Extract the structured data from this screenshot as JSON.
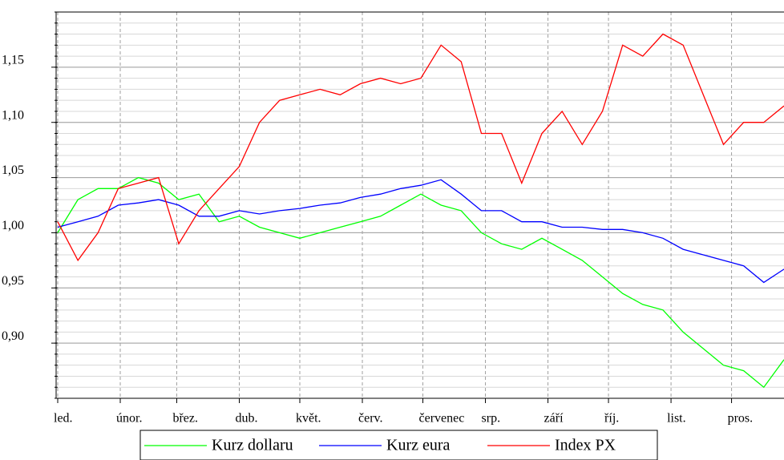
{
  "chart_data": {
    "type": "line",
    "x": [
      0,
      10,
      20,
      30,
      40,
      50,
      60,
      70,
      80,
      90,
      100,
      110,
      120,
      130,
      140,
      150,
      160,
      170,
      180,
      190,
      200,
      210,
      220,
      230,
      240,
      250,
      260,
      270,
      280,
      290,
      300,
      310,
      320,
      330,
      340,
      350,
      360
    ],
    "xlim": [
      0,
      360
    ],
    "xticks": [
      {
        "value": 0,
        "label": "led."
      },
      {
        "value": 31,
        "label": "únor."
      },
      {
        "value": 59,
        "label": "břez."
      },
      {
        "value": 90,
        "label": "dub."
      },
      {
        "value": 120,
        "label": "květ."
      },
      {
        "value": 151,
        "label": "červ."
      },
      {
        "value": 181,
        "label": "červenec"
      },
      {
        "value": 212,
        "label": "srp."
      },
      {
        "value": 243,
        "label": "září"
      },
      {
        "value": 273,
        "label": "říj."
      },
      {
        "value": 304,
        "label": "list."
      },
      {
        "value": 334,
        "label": "pros."
      }
    ],
    "ylim": [
      0.85,
      1.2
    ],
    "yticks": [
      {
        "value": 0.9,
        "label": "0,90"
      },
      {
        "value": 0.95,
        "label": "0,95"
      },
      {
        "value": 1.0,
        "label": "1,00"
      },
      {
        "value": 1.05,
        "label": "1,05"
      },
      {
        "value": 1.1,
        "label": "1,10"
      },
      {
        "value": 1.15,
        "label": "1,15"
      }
    ],
    "grid": true,
    "legend": "bottom",
    "series": [
      {
        "name": "Kurz dollaru",
        "color": "#00ff00",
        "values": [
          1.0,
          1.03,
          1.04,
          1.04,
          1.05,
          1.045,
          1.03,
          1.035,
          1.01,
          1.015,
          1.005,
          1.0,
          0.995,
          1.0,
          1.005,
          1.01,
          1.015,
          1.025,
          1.035,
          1.025,
          1.02,
          1.0,
          0.99,
          0.985,
          0.995,
          0.985,
          0.975,
          0.96,
          0.945,
          0.935,
          0.93,
          0.91,
          0.895,
          0.88,
          0.875,
          0.86,
          0.885
        ]
      },
      {
        "name": "Kurz eura",
        "color": "#0000ff",
        "values": [
          1.005,
          1.01,
          1.015,
          1.025,
          1.027,
          1.03,
          1.025,
          1.015,
          1.015,
          1.02,
          1.017,
          1.02,
          1.022,
          1.025,
          1.027,
          1.032,
          1.035,
          1.04,
          1.043,
          1.048,
          1.035,
          1.02,
          1.02,
          1.01,
          1.01,
          1.005,
          1.005,
          1.003,
          1.003,
          1.0,
          0.995,
          0.985,
          0.98,
          0.975,
          0.97,
          0.955,
          0.967
        ]
      },
      {
        "name": "Index PX",
        "color": "#ff0000",
        "values": [
          1.01,
          0.975,
          1.0,
          1.04,
          1.045,
          1.05,
          0.99,
          1.02,
          1.04,
          1.06,
          1.1,
          1.12,
          1.125,
          1.13,
          1.125,
          1.135,
          1.14,
          1.135,
          1.14,
          1.17,
          1.155,
          1.09,
          1.09,
          1.045,
          1.09,
          1.11,
          1.08,
          1.11,
          1.17,
          1.16,
          1.18,
          1.17,
          1.125,
          1.08,
          1.1,
          1.1,
          1.115
        ]
      }
    ]
  }
}
